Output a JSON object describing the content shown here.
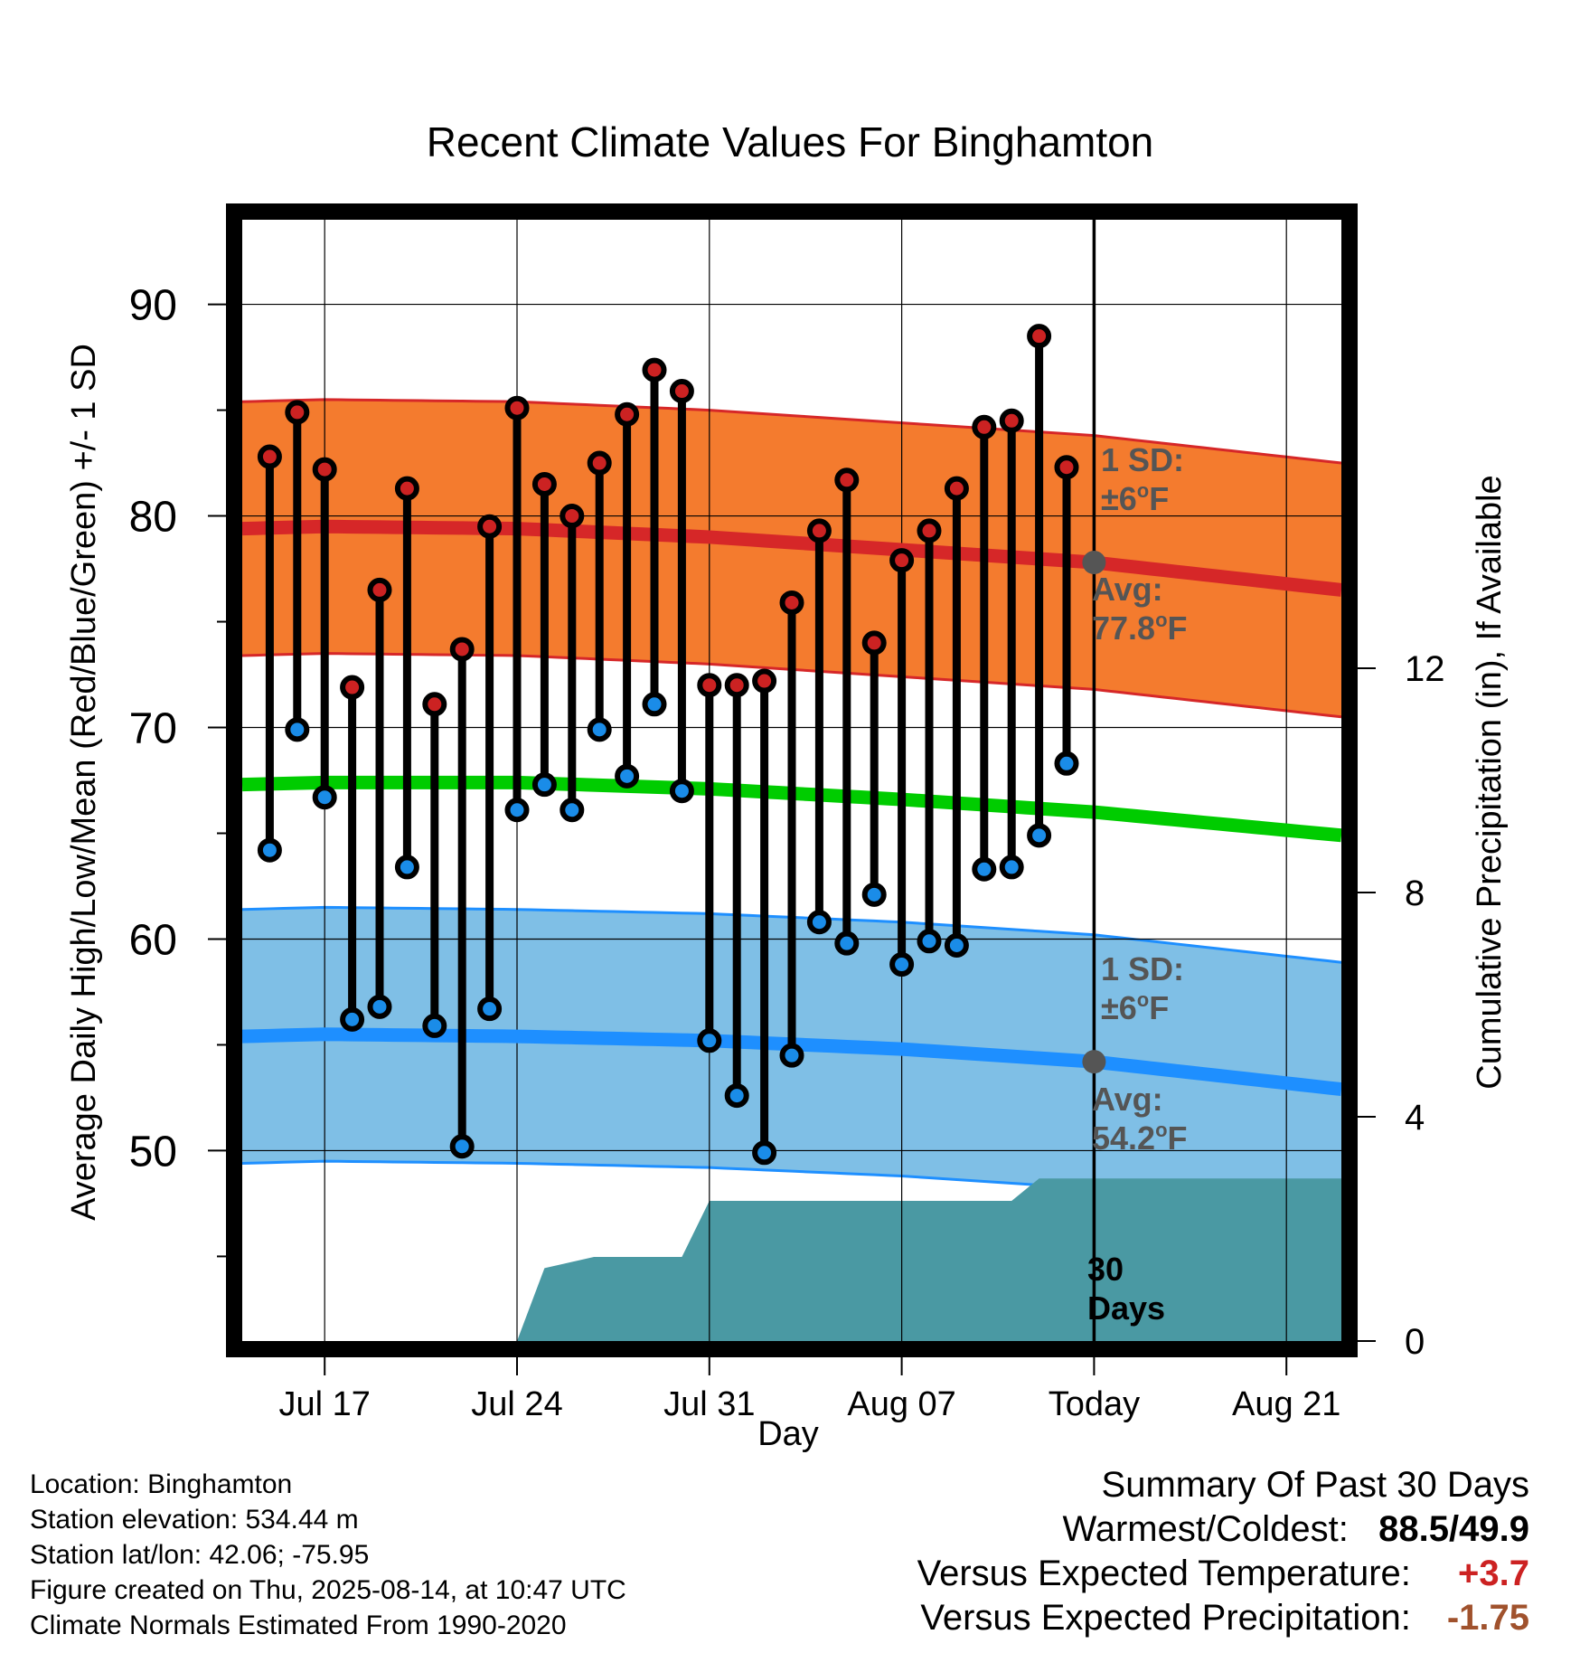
{
  "chart_data": {
    "type": "line",
    "title": "Recent Climate Values For Binghamton",
    "xlabel": "Day",
    "ylabel": "Average Daily High/Low/Mean (Red/Blue/Green) +/- 1 SD",
    "y2label": "Cumulative Precipitation (in), If Available",
    "ylim": [
      41,
      94
    ],
    "y2lim": [
      0,
      20
    ],
    "x_range_days": [
      -31,
      9
    ],
    "x_ticks": [
      {
        "day": -28,
        "label": "Jul 17"
      },
      {
        "day": -21,
        "label": "Jul 24"
      },
      {
        "day": -14,
        "label": "Jul 31"
      },
      {
        "day": -7,
        "label": "Aug 07"
      },
      {
        "day": 0,
        "label": "Today"
      },
      {
        "day": 7,
        "label": "Aug 21"
      }
    ],
    "y_ticks": [
      50,
      60,
      70,
      80,
      90
    ],
    "y2_ticks": [
      0,
      4,
      8,
      12
    ],
    "grid": true,
    "days": [
      -30,
      -29,
      -28,
      -27,
      -26,
      -25,
      -24,
      -23,
      -22,
      -21,
      -20,
      -19,
      -18,
      -17,
      -16,
      -15,
      -14,
      -13,
      -12,
      -11,
      -10,
      -9,
      -8,
      -7,
      -6,
      -5,
      -4,
      -3,
      -2,
      -1
    ],
    "highs": [
      82.8,
      84.9,
      82.2,
      71.9,
      76.5,
      81.3,
      71.1,
      73.7,
      79.5,
      85.1,
      81.5,
      80.0,
      82.5,
      84.8,
      86.9,
      85.9,
      72.0,
      72.0,
      72.2,
      75.9,
      79.3,
      81.7,
      74.0,
      77.9,
      79.3,
      81.3,
      84.2,
      84.5,
      88.5,
      82.3
    ],
    "lows": [
      64.2,
      69.9,
      66.7,
      56.2,
      56.8,
      63.4,
      55.9,
      50.2,
      56.7,
      66.1,
      67.3,
      66.1,
      69.9,
      67.7,
      71.1,
      67.0,
      55.2,
      52.6,
      49.9,
      54.5,
      60.8,
      59.8,
      62.1,
      58.8,
      59.9,
      59.7,
      63.3,
      63.4,
      64.9,
      68.3
    ],
    "normal_high": [
      [
        -31,
        79.4
      ],
      [
        -28,
        79.5
      ],
      [
        -21,
        79.4
      ],
      [
        -14,
        79.0
      ],
      [
        -7,
        78.4
      ],
      [
        0,
        77.8
      ],
      [
        9,
        76.5
      ]
    ],
    "normal_low": [
      [
        -31,
        55.4
      ],
      [
        -28,
        55.5
      ],
      [
        -21,
        55.4
      ],
      [
        -14,
        55.2
      ],
      [
        -7,
        54.8
      ],
      [
        0,
        54.2
      ],
      [
        9,
        52.9
      ]
    ],
    "normal_mean": [
      [
        -31,
        67.3
      ],
      [
        -28,
        67.4
      ],
      [
        -21,
        67.4
      ],
      [
        -14,
        67.1
      ],
      [
        -7,
        66.6
      ],
      [
        0,
        66.0
      ],
      [
        9,
        64.9
      ]
    ],
    "sd_high": 6,
    "sd_low": 6,
    "precip_cumulative": [
      [
        -21,
        0
      ],
      [
        -20,
        1.3
      ],
      [
        -18.2,
        1.5
      ],
      [
        -16.8,
        1.5
      ],
      [
        -16,
        1.5
      ],
      [
        -15,
        1.5
      ],
      [
        -14,
        2.5
      ],
      [
        -3,
        2.5
      ],
      [
        -2,
        2.9
      ],
      [
        0,
        2.9
      ],
      [
        9,
        2.9
      ]
    ],
    "annotations": {
      "high_sd": {
        "line1": "1 SD:",
        "line2": "±6",
        "unit": "F"
      },
      "high_avg": {
        "line1": "Avg:",
        "line2": "77.8",
        "unit": "F"
      },
      "low_sd": {
        "line1": "1 SD:",
        "line2": "±6",
        "unit": "F"
      },
      "low_avg": {
        "line1": "Avg:",
        "line2": "54.2",
        "unit": "F"
      },
      "precip": {
        "line1": "30",
        "line2": "Days"
      }
    },
    "colors": {
      "high_band": "#f47b2e",
      "high_line": "#d62728",
      "high_point": "#cc2222",
      "low_band": "#7fbfe6",
      "low_line": "#1e8fff",
      "low_point": "#1a8ce8",
      "mean_line": "#00cc00",
      "precip": "#4a99a3",
      "avg_marker": "#555555",
      "annotation_text": "#555555"
    }
  },
  "info": {
    "location": "Location: Binghamton",
    "elevation": "Station elevation: 534.44 m",
    "latlon": "Station lat/lon: 42.06; -75.95",
    "created": "Figure created on Thu, 2025-08-14, at 10:47 UTC",
    "normals": "Climate Normals Estimated From 1990-2020"
  },
  "summary": {
    "title": "Summary Of Past 30 Days",
    "warm_cold_label": "Warmest/Coldest:",
    "warmest": "88.5",
    "sep": "/",
    "coldest": "49.9",
    "temp_label": "Versus Expected Temperature:",
    "temp_value": "+3.7",
    "temp_color": "#cc2222",
    "precip_label": "Versus Expected Precipitation:",
    "precip_value": "-1.75",
    "precip_color": "#a0522d"
  }
}
